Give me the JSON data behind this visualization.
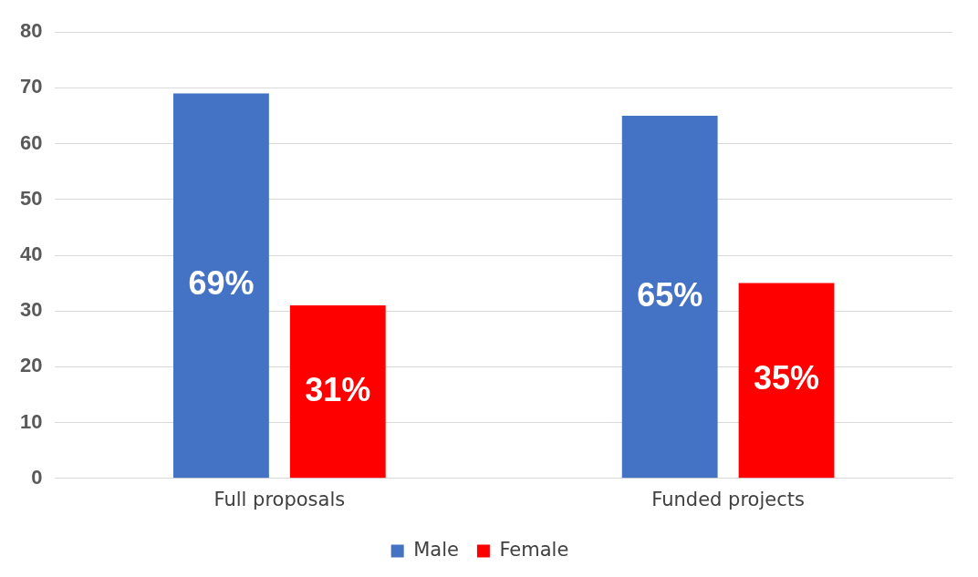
{
  "chart_data": {
    "type": "bar",
    "categories": [
      "Full proposals",
      "Funded projects"
    ],
    "series": [
      {
        "name": "Male",
        "color": "#4472c4",
        "values": [
          69,
          65
        ],
        "value_labels": [
          "69%",
          "65%"
        ]
      },
      {
        "name": "Female",
        "color": "#ff0000",
        "values": [
          31,
          35
        ],
        "value_labels": [
          "31%",
          "35%"
        ]
      }
    ],
    "ylim": [
      0,
      80
    ],
    "yticks": [
      0,
      10,
      20,
      30,
      40,
      50,
      60,
      70,
      80
    ],
    "grid": "y",
    "legend": "bottom"
  }
}
